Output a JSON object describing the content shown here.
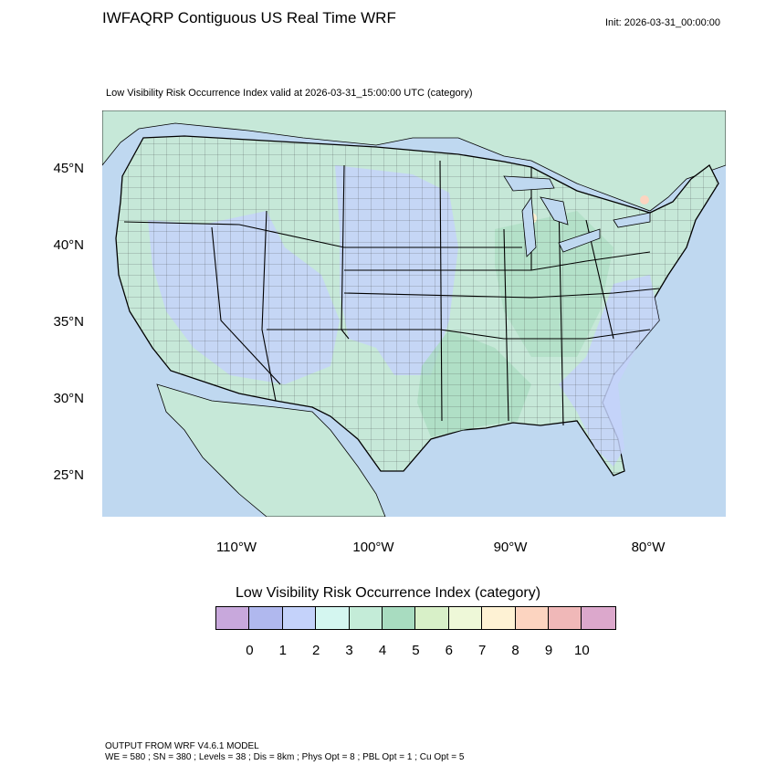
{
  "header": {
    "title": "IWFAQRP Contiguous US Real Time WRF",
    "init": "Init: 2026-03-31_00:00:00",
    "subtitle": "Low Visibility Risk Occurrence Index valid at 2026-03-31_15:00:00 UTC   (category)"
  },
  "map": {
    "lat_labels": [
      "45°N",
      "40°N",
      "35°N",
      "30°N",
      "25°N"
    ],
    "lon_labels": [
      "110°W",
      "100°W",
      "90°W",
      "80°W"
    ],
    "land_color": "#c6e8d8",
    "ocean_color": "#bfd8f0"
  },
  "legend": {
    "title": "Low Visibility Risk Occurrence Index  (category)",
    "labels": [
      "0",
      "1",
      "2",
      "3",
      "4",
      "5",
      "6",
      "7",
      "8",
      "9",
      "10"
    ],
    "colors": [
      "#c8a8dc",
      "#b0b8ee",
      "#c4d2fa",
      "#d4f6f0",
      "#c4ecd8",
      "#a8dcc0",
      "#d8f0c8",
      "#eef8d8",
      "#fef2d4",
      "#fcd4c0",
      "#f0b8b8",
      "#dca8cc"
    ]
  },
  "footer": {
    "line1": "OUTPUT FROM WRF V4.6.1 MODEL",
    "line2": "WE = 580 ; SN = 380 ; Levels = 38 ; Dis = 8km ; Phys Opt = 8 ; PBL Opt = 1 ; Cu Opt = 5"
  }
}
